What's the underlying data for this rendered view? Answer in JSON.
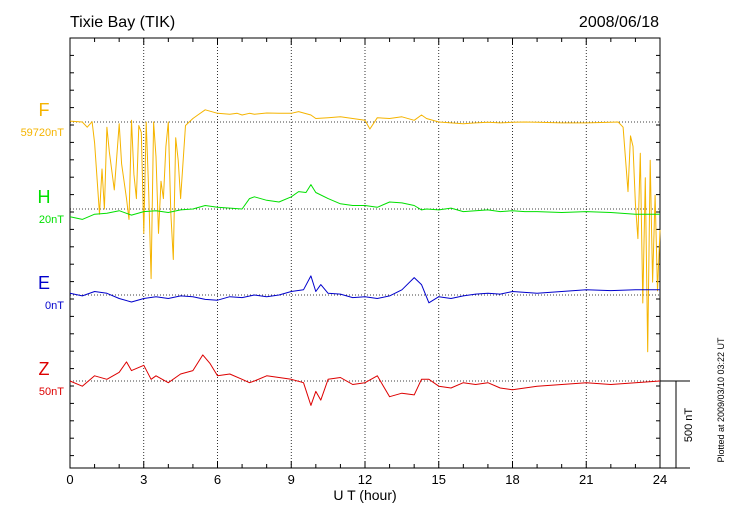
{
  "chart_data": {
    "type": "line",
    "title": "Tixie Bay (TIK)",
    "date": "2008/06/18",
    "xlabel": "U T (hour)",
    "xlim": [
      0,
      24
    ],
    "xticks": [
      "0",
      "3",
      "6",
      "9",
      "12",
      "15",
      "18",
      "21",
      "24"
    ],
    "scale_bar_label": "500 nT",
    "plotted_note": "Plotted at 2009/03/10 03:22 UT",
    "grid": true,
    "colors": {
      "F": "#f5b400",
      "H": "#00e000",
      "E": "#0000cc",
      "Z": "#dd0000"
    },
    "series": [
      {
        "letter": "F",
        "baseline_label": "59720nT",
        "baseline": 59720,
        "x": [
          0,
          0.5,
          0.7,
          0.9,
          1.0,
          1.2,
          1.3,
          1.4,
          1.5,
          1.6,
          1.8,
          2.0,
          2.1,
          2.3,
          2.4,
          2.5,
          2.6,
          2.7,
          2.8,
          2.9,
          3.0,
          3.1,
          3.2,
          3.3,
          3.4,
          3.5,
          3.6,
          3.7,
          3.8,
          3.9,
          4.0,
          4.1,
          4.2,
          4.3,
          4.4,
          4.5,
          4.7,
          5.0,
          5.2,
          5.5,
          6.0,
          6.5,
          6.8,
          7.0,
          7.3,
          7.5,
          8.0,
          8.5,
          9.0,
          9.3,
          9.8,
          10.0,
          10.5,
          11.0,
          11.5,
          12.0,
          12.2,
          12.5,
          13.0,
          13.5,
          14.0,
          14.3,
          14.5,
          15.0,
          15.5,
          16.0,
          16.5,
          17.0,
          17.5,
          18.0,
          18.5,
          19.0,
          20.0,
          21.0,
          22.0,
          22.3,
          22.5,
          22.7,
          22.8,
          22.9,
          23.0,
          23.1,
          23.2,
          23.3,
          23.4,
          23.5,
          23.6,
          23.7,
          23.8,
          23.9,
          24.0
        ],
        "y": [
          59725,
          59720,
          59690,
          59722,
          59600,
          59190,
          59450,
          59220,
          59690,
          59550,
          59330,
          59710,
          59480,
          59280,
          59160,
          59730,
          59420,
          59280,
          59700,
          59660,
          59080,
          59720,
          59320,
          58820,
          59720,
          59520,
          59080,
          59380,
          59280,
          59580,
          59720,
          59200,
          58930,
          59630,
          59500,
          59280,
          59700,
          59740,
          59760,
          59790,
          59770,
          59765,
          59770,
          59760,
          59770,
          59765,
          59772,
          59770,
          59770,
          59780,
          59760,
          59740,
          59745,
          59750,
          59740,
          59730,
          59680,
          59745,
          59740,
          59750,
          59730,
          59760,
          59740,
          59720,
          59715,
          59710,
          59715,
          59718,
          59715,
          59718,
          59720,
          59718,
          59715,
          59715,
          59718,
          59720,
          59690,
          59320,
          59640,
          59580,
          59250,
          59050,
          59540,
          58680,
          59400,
          58400,
          59500,
          58800,
          59300,
          58750,
          59100
        ]
      },
      {
        "letter": "H",
        "baseline_label": "20nT",
        "baseline": 20,
        "x": [
          0,
          0.5,
          1.0,
          1.5,
          2.0,
          2.5,
          3.0,
          3.5,
          4.0,
          4.5,
          5.0,
          5.5,
          6.0,
          6.5,
          7.0,
          7.3,
          7.5,
          8.0,
          8.5,
          9.0,
          9.3,
          9.6,
          9.8,
          10.0,
          10.5,
          11.0,
          11.5,
          12.0,
          12.5,
          13.0,
          13.5,
          14.0,
          14.3,
          14.5,
          15.0,
          15.5,
          16.0,
          16.5,
          17.0,
          17.5,
          18.0,
          18.5,
          19.0,
          20.0,
          21.0,
          22.0,
          23.0,
          24.0
        ],
        "y": [
          -25,
          -40,
          -10,
          -5,
          10,
          -15,
          5,
          10,
          0,
          15,
          20,
          40,
          30,
          25,
          20,
          80,
          90,
          70,
          60,
          90,
          120,
          115,
          160,
          115,
          80,
          50,
          40,
          40,
          30,
          60,
          55,
          40,
          15,
          20,
          15,
          25,
          5,
          10,
          15,
          5,
          10,
          5,
          5,
          0,
          5,
          0,
          -10,
          -10
        ]
      },
      {
        "letter": "E",
        "baseline_label": "0nT",
        "baseline": 0,
        "x": [
          0,
          0.5,
          1.0,
          1.5,
          2.0,
          2.5,
          3.0,
          3.5,
          4.0,
          4.5,
          5.0,
          5.5,
          6.0,
          6.5,
          7.0,
          7.5,
          8.0,
          8.5,
          9.0,
          9.5,
          9.8,
          10.0,
          10.2,
          10.5,
          11.0,
          11.5,
          12.0,
          12.5,
          13.0,
          13.5,
          14.0,
          14.3,
          14.6,
          15.0,
          15.5,
          16.0,
          16.5,
          17.0,
          17.5,
          18.0,
          18.5,
          19.0,
          20.0,
          21.0,
          22.0,
          23.0,
          24.0
        ],
        "y": [
          10,
          -5,
          20,
          10,
          -20,
          -40,
          -20,
          -10,
          -20,
          -5,
          -10,
          -25,
          -30,
          -10,
          -15,
          0,
          -10,
          0,
          20,
          30,
          110,
          20,
          60,
          10,
          5,
          -15,
          -10,
          -20,
          -5,
          30,
          100,
          60,
          -45,
          -10,
          -20,
          -5,
          5,
          10,
          5,
          20,
          15,
          10,
          20,
          30,
          25,
          30,
          30
        ]
      },
      {
        "letter": "Z",
        "baseline_label": "50nT",
        "baseline": 50,
        "x": [
          0,
          0.5,
          1.0,
          1.5,
          2.0,
          2.3,
          2.5,
          3.0,
          3.3,
          3.5,
          4.0,
          4.5,
          5.0,
          5.4,
          5.7,
          6.0,
          6.5,
          7.0,
          7.3,
          7.5,
          8.0,
          8.5,
          9.0,
          9.5,
          9.8,
          10.0,
          10.2,
          10.5,
          11.0,
          11.5,
          12.0,
          12.5,
          13.0,
          13.5,
          14.0,
          14.3,
          14.6,
          15.0,
          15.5,
          16.0,
          16.5,
          17.0,
          17.5,
          18.0,
          19.0,
          20.0,
          21.0,
          22.0,
          23.0,
          24.0
        ],
        "y": [
          50,
          20,
          80,
          60,
          100,
          160,
          110,
          140,
          60,
          80,
          40,
          90,
          110,
          200,
          150,
          80,
          90,
          60,
          40,
          50,
          80,
          70,
          60,
          40,
          -90,
          -10,
          -60,
          60,
          70,
          30,
          40,
          80,
          -40,
          -20,
          -30,
          60,
          60,
          20,
          10,
          40,
          30,
          40,
          10,
          0,
          20,
          30,
          40,
          30,
          40,
          50
        ]
      }
    ]
  }
}
